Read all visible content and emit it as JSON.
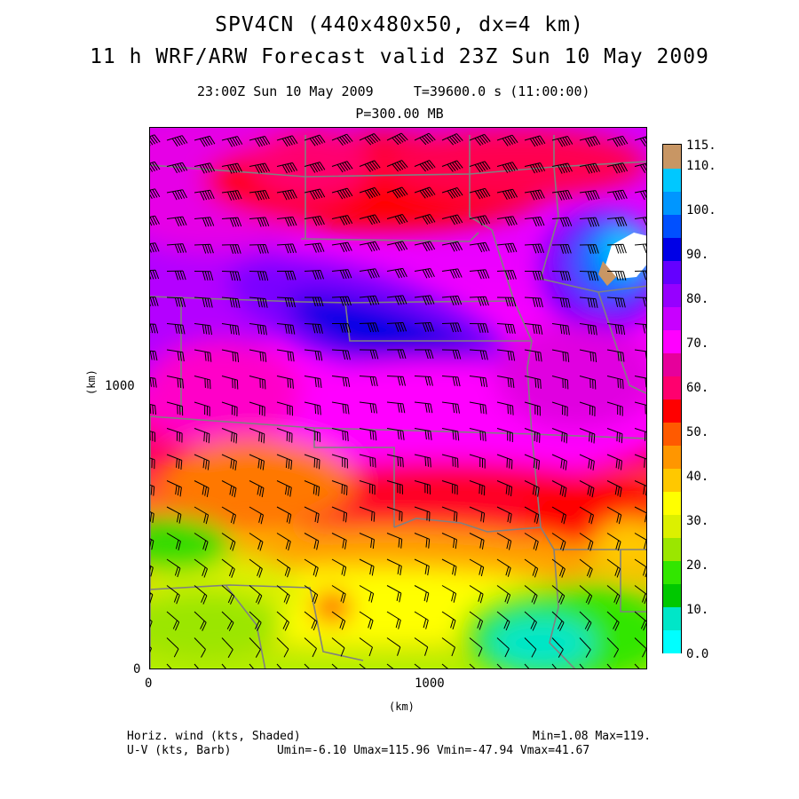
{
  "header": {
    "title_line1": "SPV4CN (440x480x50, dx=4 km)",
    "title_line2": "11 h WRF/ARW Forecast valid 23Z Sun 10 May 2009",
    "subtitle": "23:00Z Sun 10 May 2009     T=39600.0 s (11:00:00)",
    "level": "P=300.00 MB"
  },
  "axes": {
    "y_label": "(km)",
    "x_label": "(km)",
    "y_ticks": [
      "0",
      "1000"
    ],
    "x_ticks": [
      "0",
      "1000"
    ]
  },
  "colorbar": {
    "labels": [
      "115.",
      "110.",
      "100.",
      "90.",
      "80.",
      "70.",
      "60.",
      "50.",
      "40.",
      "30.",
      "20.",
      "10.",
      "0.0"
    ],
    "colors": [
      "#00ffff",
      "#00e6c8",
      "#00c800",
      "#32e600",
      "#9be600",
      "#dcf000",
      "#ffff00",
      "#ffc800",
      "#ff9600",
      "#ff5a00",
      "#ff0000",
      "#ff006e",
      "#e6009b",
      "#ff00ff",
      "#c800ff",
      "#9600ff",
      "#6400ff",
      "#0000e6",
      "#0050ff",
      "#0096ff",
      "#00c8ff",
      "#c89664"
    ]
  },
  "footer": {
    "line1_left": "Horiz. wind (kts, Shaded)",
    "line2_left": "U-V (kts, Barb)",
    "minmax": "Min=1.08 Max=119.",
    "uv_stats": "Umin=-6.10 Umax=115.96 Vmin=-47.94 Vmax=41.67"
  },
  "map": {
    "theme": "300 mb wind speed shading with wind barbs over central United States",
    "shaded_field": "horizontal wind speed (kts)",
    "barb_field": "U-V wind (kts)"
  }
}
